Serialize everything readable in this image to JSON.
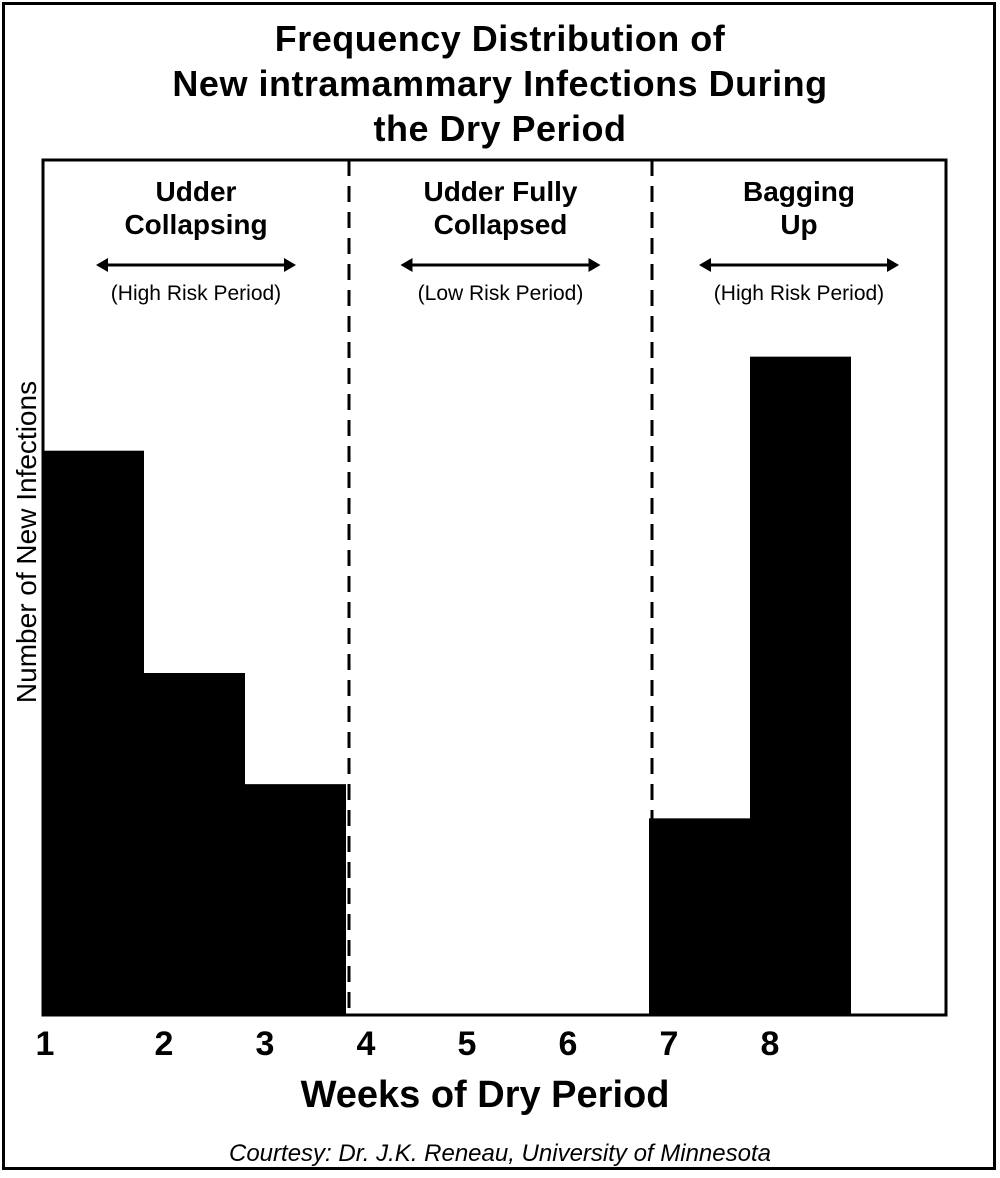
{
  "chart_data": {
    "type": "bar",
    "title_lines": [
      "Frequency Distribution of",
      "New intramammary Infections During",
      "the Dry Period"
    ],
    "xlabel": "Weeks of Dry Period",
    "ylabel": "Number of New Infections",
    "x_ticks": [
      "1",
      "2",
      "3",
      "4",
      "5",
      "6",
      "7",
      "8"
    ],
    "bars": [
      {
        "start_week": 1,
        "end_week": 2,
        "value": 66
      },
      {
        "start_week": 2,
        "end_week": 3,
        "value": 40
      },
      {
        "start_week": 3,
        "end_week": 4,
        "value": 27
      },
      {
        "start_week": 7,
        "end_week": 8,
        "value": 23
      },
      {
        "start_week": 8,
        "end_week": 9,
        "value": 77
      }
    ],
    "ylim": [
      0,
      100
    ],
    "region_dividers_week": [
      4,
      7
    ],
    "regions": [
      {
        "label_lines": [
          "Udder",
          "Collapsing"
        ],
        "risk": "(High Risk Period)"
      },
      {
        "label_lines": [
          "Udder Fully",
          "Collapsed"
        ],
        "risk": "(Low Risk Period)"
      },
      {
        "label_lines": [
          "Bagging",
          "Up"
        ],
        "risk": "(High Risk Period)"
      }
    ],
    "grid": false,
    "colors": {
      "bars": "#000000",
      "background": "#ffffff"
    }
  },
  "footer": {
    "credit": "Courtesy: Dr. J.K. Reneau, University of Minnesota"
  }
}
